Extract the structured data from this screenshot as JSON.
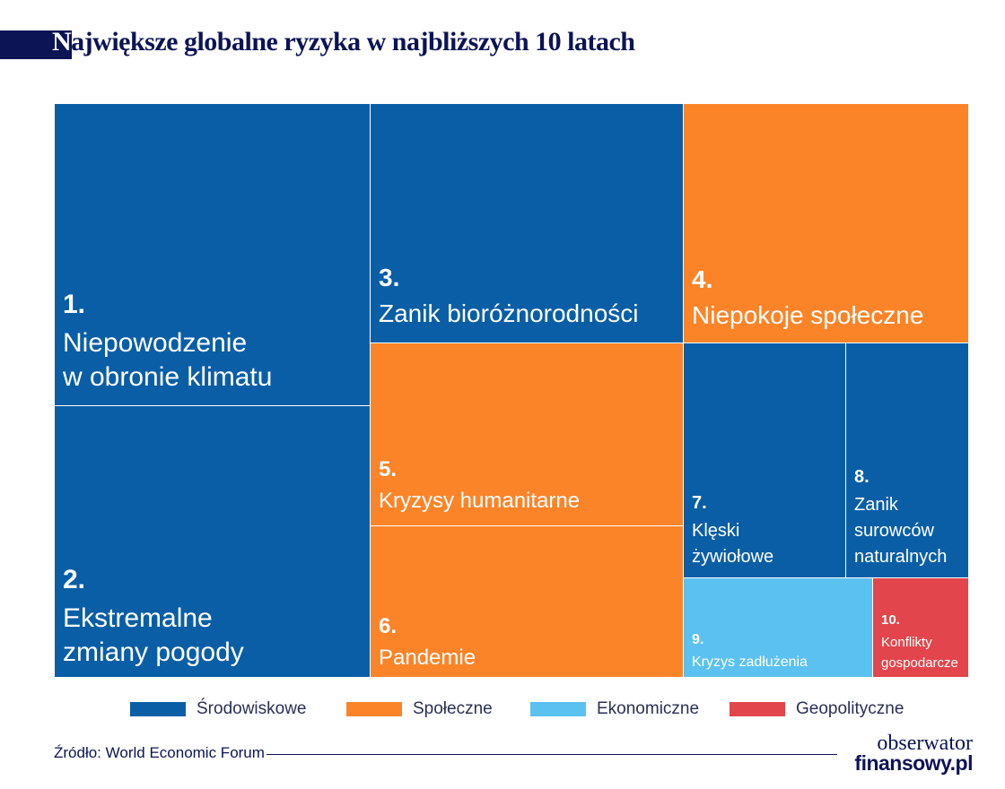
{
  "title": {
    "first_letter": "N",
    "rest": "ajwiększe globalne ryzyka w najbliższych 10 latach"
  },
  "chart_data": {
    "type": "treemap",
    "title": "Największe globalne ryzyka w najbliższych 10 latach",
    "categories": [
      {
        "name": "Środowiskowe",
        "color": "#0a5ea6"
      },
      {
        "name": "Społeczne",
        "color": "#fb8429"
      },
      {
        "name": "Ekonomiczne",
        "color": "#5bc1f0"
      },
      {
        "name": "Geopolityczne",
        "color": "#e2454b"
      }
    ],
    "items": [
      {
        "rank": "1.",
        "label": "Niepowodzenie\nw obronie klimatu",
        "category": "Środowiskowe"
      },
      {
        "rank": "2.",
        "label": "Ekstremalne\nzmiany pogody",
        "category": "Środowiskowe"
      },
      {
        "rank": "3.",
        "label": "Zanik bioróżnorodności",
        "category": "Środowiskowe"
      },
      {
        "rank": "4.",
        "label": "Niepokoje społeczne",
        "category": "Społeczne"
      },
      {
        "rank": "5.",
        "label": "Kryzysy humanitarne",
        "category": "Społeczne"
      },
      {
        "rank": "6.",
        "label": "Pandemie",
        "category": "Społeczne"
      },
      {
        "rank": "7.",
        "label": "Klęski\nżywiołowe",
        "category": "Środowiskowe"
      },
      {
        "rank": "8.",
        "label": "Zanik\nsurowców\nnaturalnych",
        "category": "Środowiskowe"
      },
      {
        "rank": "9.",
        "label": "Kryzys zadłużenia",
        "category": "Ekonomiczne"
      },
      {
        "rank": "10.",
        "label": "Konflikty\ngospodarcze",
        "category": "Geopolityczne"
      }
    ],
    "legend_position": "bottom"
  },
  "footer": {
    "source": "Źródło: World Economic Forum",
    "logo_line1": "obserwator",
    "logo_line2": "finansowy.pl"
  }
}
